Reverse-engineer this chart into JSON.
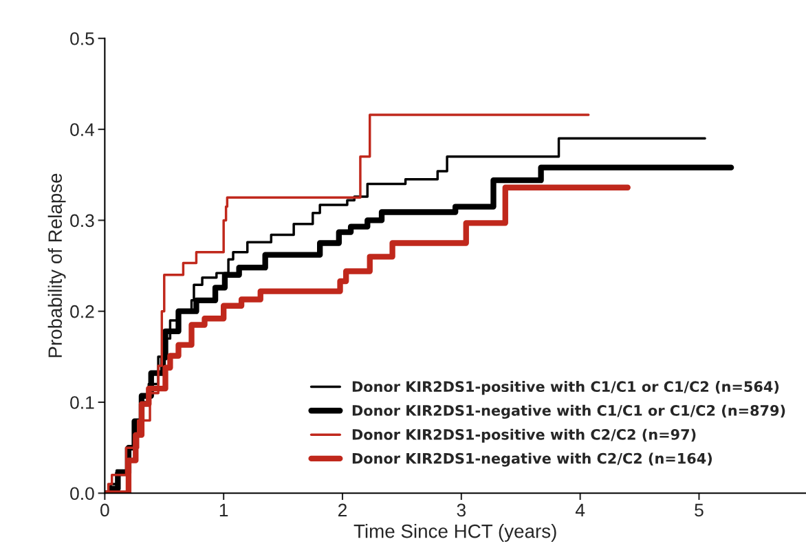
{
  "chart_data": {
    "type": "step",
    "xlabel": "Time Since HCT (years)",
    "ylabel": "Probability of Relapse",
    "xlim": [
      0,
      5.9
    ],
    "xticks": [
      0,
      1,
      2,
      3,
      4,
      5
    ],
    "ylim": [
      0,
      0.5
    ],
    "yticks": [
      {
        "value": 0,
        "label": "0.0"
      },
      0.1,
      0.2,
      0.3,
      0.4,
      {
        "value": 0.5,
        "label": "0.5"
      }
    ],
    "legend": "bottom right",
    "grid": false,
    "marker": "none",
    "line_style": "solid",
    "series": [
      {
        "name": "Donor KIR2DS1-positive with C1/C1 or C1/C2 (n=564)",
        "color": "#000000",
        "x": [
          0,
          0.05,
          0.1,
          0.18,
          0.25,
          0.3,
          0.37,
          0.45,
          0.5,
          0.55,
          0.62,
          0.73,
          0.75,
          0.82,
          0.94,
          1.04,
          1.08,
          1.2,
          1.4,
          1.59,
          1.75,
          1.81,
          2.04,
          2.1,
          2.21,
          2.53,
          2.8,
          2.88,
          3.82,
          5.05
        ],
        "values": [
          0,
          0.01,
          0.025,
          0.05,
          0.08,
          0.1,
          0.12,
          0.15,
          0.17,
          0.19,
          0.2,
          0.212,
          0.229,
          0.237,
          0.242,
          0.257,
          0.265,
          0.276,
          0.284,
          0.296,
          0.308,
          0.317,
          0.322,
          0.326,
          0.34,
          0.345,
          0.354,
          0.37,
          0.39,
          0.39
        ]
      },
      {
        "name": "Donor KIR2DS1-negative with C1/C1 or C1/C2 (n=879)",
        "color": "#000000",
        "x": [
          0,
          0.05,
          0.11,
          0.2,
          0.25,
          0.31,
          0.39,
          0.49,
          0.51,
          0.62,
          0.77,
          0.93,
          1.01,
          1.13,
          1.35,
          1.81,
          1.97,
          2.07,
          2.21,
          2.33,
          2.95,
          3.27,
          3.67,
          5.27
        ],
        "values": [
          0,
          0.005,
          0.022,
          0.05,
          0.079,
          0.107,
          0.132,
          0.149,
          0.178,
          0.2,
          0.212,
          0.226,
          0.24,
          0.248,
          0.262,
          0.275,
          0.287,
          0.293,
          0.3,
          0.309,
          0.315,
          0.344,
          0.358,
          0.358
        ]
      },
      {
        "name": "Donor KIR2DS1-positive with C2/C2 (n=97)",
        "color": "#c0281c",
        "x": [
          0,
          0.03,
          0.06,
          0.18,
          0.28,
          0.38,
          0.45,
          0.48,
          0.5,
          0.66,
          0.77,
          1.0,
          1.02,
          1.03,
          2.15,
          2.23,
          4.07
        ],
        "values": [
          0,
          0.01,
          0.02,
          0.05,
          0.08,
          0.11,
          0.14,
          0.2,
          0.24,
          0.253,
          0.265,
          0.3,
          0.315,
          0.325,
          0.37,
          0.416,
          0.416
        ]
      },
      {
        "name": "Donor KIR2DS1-negative with C2/C2 (n=164)",
        "color": "#c0281c",
        "x": [
          0,
          0.2,
          0.26,
          0.31,
          0.37,
          0.51,
          0.55,
          0.62,
          0.73,
          0.84,
          1.0,
          1.15,
          1.31,
          1.98,
          2.03,
          2.23,
          2.42,
          3.04,
          3.37,
          4.4
        ],
        "values": [
          0,
          0.036,
          0.064,
          0.098,
          0.115,
          0.138,
          0.151,
          0.163,
          0.185,
          0.192,
          0.206,
          0.213,
          0.222,
          0.233,
          0.244,
          0.26,
          0.275,
          0.297,
          0.336,
          0.336
        ]
      }
    ]
  }
}
